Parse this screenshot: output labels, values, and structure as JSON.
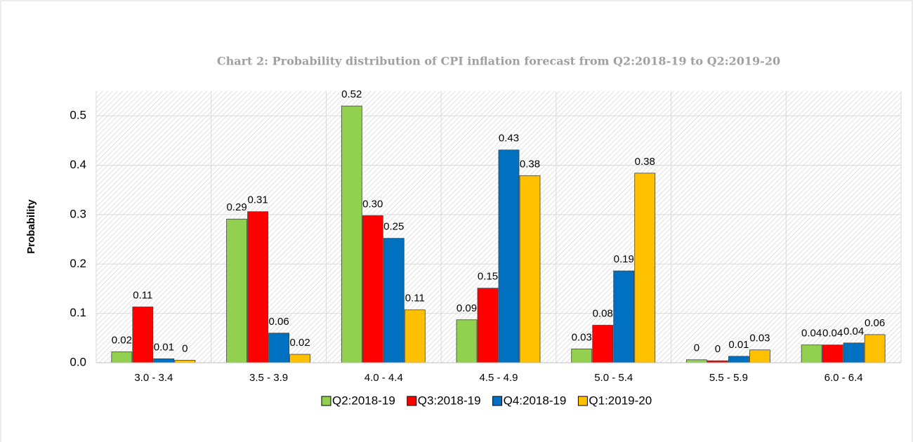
{
  "chart_data": {
    "type": "bar",
    "title": "Chart 2: Probability distribution of  CPI inflation forecast from Q2:2018-19 to Q2:2019-20",
    "y_label": "Probability",
    "categories": [
      "3.0 - 3.4",
      "3.5 - 3.9",
      "4.0 - 4.4",
      "4.5 - 4.9",
      "5.0 - 5.4",
      "5.5 - 5.9",
      "6.0 - 6.4"
    ],
    "series": [
      {
        "name": "Q2:2018-19",
        "color": "#92d050",
        "values": [
          0.022,
          0.291,
          0.52,
          0.087,
          0.028,
          0.006,
          0.036
        ],
        "value_labels": [
          "0.02",
          "0.29",
          "0.52",
          "0.09",
          "0.03",
          "0",
          "0.04"
        ]
      },
      {
        "name": "Q3:2018-19",
        "color": "#ff0000",
        "values": [
          0.113,
          0.306,
          0.298,
          0.151,
          0.076,
          0.004,
          0.036
        ],
        "value_labels": [
          "0.11",
          "0.31",
          "0.30",
          "0.15",
          "0.08",
          "0",
          "0.04"
        ]
      },
      {
        "name": "Q4:2018-19",
        "color": "#0070c0",
        "values": [
          0.008,
          0.06,
          0.252,
          0.431,
          0.186,
          0.013,
          0.04
        ],
        "value_labels": [
          "0.01",
          "0.06",
          "0.25",
          "0.43",
          "0.19",
          "0.01",
          "0.04"
        ]
      },
      {
        "name": "Q1:2019-20",
        "color": "#ffc000",
        "values": [
          0.005,
          0.017,
          0.107,
          0.379,
          0.384,
          0.026,
          0.057
        ],
        "value_labels": [
          "0",
          "0.02",
          "0.11",
          "0.38",
          "0.38",
          "0.03",
          "0.06"
        ]
      }
    ],
    "ylim": [
      0,
      0.55
    ],
    "yticks": [
      {
        "value": 0,
        "label": "0.0"
      },
      0.1,
      0.2,
      0.3,
      0.4,
      0.5
    ],
    "grid": true,
    "legend": "bottom"
  }
}
